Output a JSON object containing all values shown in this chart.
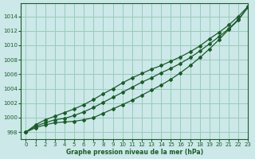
{
  "title": "Graphe pression niveau de la mer (hPa)",
  "bg_color": "#cce8e8",
  "grid_color": "#99ccbb",
  "line_color": "#1a5c2a",
  "xlim": [
    -0.5,
    23
  ],
  "ylim": [
    997.0,
    1015.8
  ],
  "yticks": [
    998,
    1000,
    1002,
    1004,
    1006,
    1008,
    1010,
    1012,
    1014
  ],
  "xticks": [
    0,
    1,
    2,
    3,
    4,
    5,
    6,
    7,
    8,
    9,
    10,
    11,
    12,
    13,
    14,
    15,
    16,
    17,
    18,
    19,
    20,
    21,
    22,
    23
  ],
  "series1": [
    998.0,
    998.6,
    999.0,
    999.3,
    999.4,
    999.5,
    999.7,
    1000.0,
    1000.6,
    1001.2,
    1001.8,
    1002.4,
    1003.1,
    1003.8,
    1004.5,
    1005.3,
    1006.2,
    1007.2,
    1008.3,
    1009.5,
    1010.8,
    1012.2,
    1013.5,
    1015.3
  ],
  "series2": [
    998.0,
    998.8,
    999.3,
    999.7,
    999.9,
    1000.3,
    1000.8,
    1001.4,
    1002.1,
    1002.8,
    1003.5,
    1004.2,
    1004.9,
    1005.5,
    1006.2,
    1006.8,
    1007.5,
    1008.3,
    1009.2,
    1010.2,
    1011.2,
    1012.3,
    1013.6,
    1015.3
  ],
  "series3": [
    998.0,
    999.0,
    999.7,
    1000.2,
    1000.7,
    1001.2,
    1001.8,
    1002.5,
    1003.3,
    1004.0,
    1004.8,
    1005.5,
    1006.1,
    1006.7,
    1007.2,
    1007.8,
    1008.4,
    1009.1,
    1009.9,
    1010.9,
    1011.8,
    1012.8,
    1014.0,
    1015.4
  ]
}
